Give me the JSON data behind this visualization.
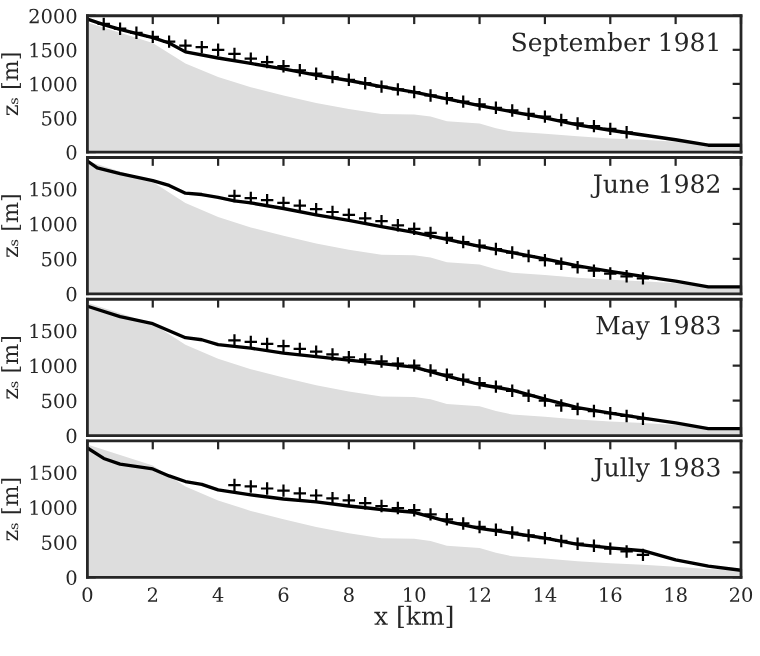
{
  "chart_data": [
    {
      "type": "line",
      "title": "September 1981",
      "ylabel": "zₛ [m]",
      "xlim": [
        0,
        20
      ],
      "ylim": [
        0,
        2000
      ],
      "xticks": [
        0,
        2,
        4,
        6,
        8,
        10,
        12,
        14,
        16,
        18,
        20
      ],
      "yticks": [
        0,
        500,
        1000,
        1500,
        2000
      ],
      "tick_labels": "y",
      "series": [
        {
          "type": "area",
          "color": "#dddddd",
          "x": [
            0,
            1,
            2,
            2.5,
            3,
            4,
            5,
            6,
            7,
            8,
            9,
            10,
            10.5,
            11,
            12,
            12.5,
            13,
            14,
            15,
            16,
            17,
            18,
            19,
            20
          ],
          "values": [
            1900,
            1750,
            1600,
            1450,
            1300,
            1100,
            950,
            830,
            720,
            630,
            560,
            550,
            520,
            450,
            420,
            350,
            300,
            270,
            230,
            200,
            180,
            150,
            120,
            100
          ]
        },
        {
          "type": "line",
          "color": "#000000",
          "x": [
            0,
            0.5,
            1,
            2,
            2.5,
            3,
            4,
            5,
            6,
            7,
            8,
            9,
            10,
            11,
            12,
            13,
            14,
            15,
            16,
            17,
            18,
            19,
            20
          ],
          "values": [
            1950,
            1870,
            1800,
            1680,
            1600,
            1470,
            1380,
            1300,
            1220,
            1130,
            1050,
            960,
            880,
            780,
            680,
            590,
            500,
            400,
            320,
            250,
            180,
            100,
            100
          ]
        },
        {
          "type": "scatter",
          "marker": "cross",
          "color": "#000000",
          "x": [
            0.5,
            1,
            1.5,
            2,
            2.5,
            3,
            3.5,
            4,
            4.5,
            5,
            5.5,
            6,
            6.5,
            7,
            7.5,
            8,
            8.5,
            9,
            9.5,
            10,
            10.5,
            11,
            11.5,
            12,
            12.5,
            13,
            13.5,
            14,
            14.5,
            15,
            15.5,
            16,
            16.5
          ],
          "values": [
            1880,
            1810,
            1750,
            1690,
            1620,
            1560,
            1540,
            1500,
            1440,
            1370,
            1320,
            1260,
            1200,
            1150,
            1100,
            1060,
            1010,
            960,
            920,
            880,
            830,
            790,
            740,
            700,
            650,
            610,
            560,
            520,
            470,
            420,
            380,
            340,
            290
          ]
        }
      ]
    },
    {
      "type": "line",
      "title": "June 1982",
      "ylabel": "zₛ [m]",
      "xlim": [
        0,
        20
      ],
      "ylim": [
        0,
        1950
      ],
      "xticks": [
        0,
        2,
        4,
        6,
        8,
        10,
        12,
        14,
        16,
        18,
        20
      ],
      "yticks": [
        0,
        500,
        1000,
        1500
      ],
      "tick_labels": "y",
      "series": [
        {
          "type": "area",
          "color": "#dddddd",
          "x": [
            0,
            1,
            2,
            2.5,
            3,
            4,
            5,
            6,
            7,
            8,
            9,
            10,
            10.5,
            11,
            12,
            12.5,
            13,
            14,
            15,
            16,
            17,
            18,
            19,
            20
          ],
          "values": [
            1900,
            1750,
            1600,
            1450,
            1300,
            1100,
            950,
            830,
            720,
            630,
            560,
            550,
            520,
            450,
            420,
            350,
            300,
            270,
            230,
            200,
            180,
            150,
            120,
            100
          ]
        },
        {
          "type": "line",
          "color": "#000000",
          "x": [
            0,
            0.3,
            1,
            2,
            2.5,
            3,
            3.5,
            4,
            4.5,
            5,
            6,
            7,
            8,
            9,
            10,
            11,
            12,
            13,
            14,
            15,
            16,
            17,
            18,
            19,
            20
          ],
          "values": [
            1900,
            1800,
            1720,
            1620,
            1550,
            1440,
            1420,
            1380,
            1330,
            1300,
            1220,
            1130,
            1050,
            960,
            880,
            780,
            680,
            590,
            500,
            400,
            320,
            250,
            180,
            100,
            100
          ]
        },
        {
          "type": "scatter",
          "marker": "cross",
          "color": "#000000",
          "x": [
            4.5,
            5,
            5.5,
            6,
            6.5,
            7,
            7.5,
            8,
            8.5,
            9,
            9.5,
            10,
            10.5,
            11,
            11.5,
            12,
            12.5,
            13,
            13.5,
            14,
            14.5,
            15,
            15.5,
            16,
            16.5,
            17
          ],
          "values": [
            1400,
            1370,
            1340,
            1300,
            1260,
            1210,
            1170,
            1130,
            1080,
            1040,
            980,
            930,
            870,
            800,
            740,
            690,
            640,
            590,
            540,
            480,
            430,
            380,
            330,
            290,
            250,
            220
          ]
        }
      ]
    },
    {
      "type": "line",
      "title": "May 1983",
      "ylabel": "zₛ [m]",
      "xlim": [
        0,
        20
      ],
      "ylim": [
        0,
        1950
      ],
      "xticks": [
        0,
        2,
        4,
        6,
        8,
        10,
        12,
        14,
        16,
        18,
        20
      ],
      "yticks": [
        0,
        500,
        1000,
        1500
      ],
      "tick_labels": "y",
      "series": [
        {
          "type": "area",
          "color": "#dddddd",
          "x": [
            0,
            1,
            2,
            2.5,
            3,
            4,
            5,
            6,
            7,
            8,
            9,
            10,
            10.5,
            11,
            12,
            12.5,
            13,
            14,
            15,
            16,
            17,
            18,
            19,
            20
          ],
          "values": [
            1900,
            1750,
            1600,
            1450,
            1300,
            1100,
            950,
            830,
            720,
            630,
            560,
            550,
            520,
            450,
            420,
            350,
            300,
            270,
            230,
            200,
            180,
            150,
            120,
            100
          ]
        },
        {
          "type": "line",
          "color": "#000000",
          "x": [
            0,
            1,
            2,
            2.5,
            3,
            3.5,
            4,
            5,
            6,
            8,
            10,
            11,
            12,
            13,
            14,
            15,
            16,
            17,
            18,
            19,
            20
          ],
          "values": [
            1850,
            1700,
            1600,
            1500,
            1400,
            1370,
            1300,
            1250,
            1180,
            1080,
            980,
            850,
            730,
            650,
            520,
            400,
            320,
            250,
            180,
            100,
            100
          ]
        },
        {
          "type": "scatter",
          "marker": "cross",
          "color": "#000000",
          "x": [
            4.5,
            5,
            5.5,
            6,
            6.5,
            7,
            7.5,
            8,
            8.5,
            9,
            9.5,
            10,
            10.5,
            11,
            11.5,
            12,
            12.5,
            13,
            13.5,
            14,
            14.5,
            15,
            15.5,
            16,
            16.5,
            17
          ],
          "values": [
            1360,
            1340,
            1310,
            1280,
            1240,
            1200,
            1160,
            1120,
            1090,
            1060,
            1030,
            1000,
            930,
            870,
            800,
            750,
            700,
            640,
            570,
            500,
            430,
            380,
            350,
            320,
            280,
            240
          ]
        }
      ]
    },
    {
      "type": "line",
      "title": "Jully 1983",
      "xlabel": "x [km]",
      "ylabel": "zₛ [m]",
      "xlim": [
        0,
        20
      ],
      "ylim": [
        0,
        1950
      ],
      "xticks": [
        0,
        2,
        4,
        6,
        8,
        10,
        12,
        14,
        16,
        18,
        20
      ],
      "yticks": [
        0,
        500,
        1000,
        1500
      ],
      "series": [
        {
          "type": "area",
          "color": "#dddddd",
          "x": [
            0,
            1,
            2,
            2.5,
            3,
            4,
            5,
            6,
            7,
            8,
            9,
            10,
            10.5,
            11,
            12,
            12.5,
            13,
            14,
            15,
            16,
            17,
            18,
            19,
            20
          ],
          "values": [
            1900,
            1750,
            1600,
            1450,
            1300,
            1100,
            950,
            830,
            720,
            630,
            560,
            550,
            520,
            450,
            420,
            350,
            300,
            270,
            230,
            200,
            180,
            150,
            120,
            100
          ]
        },
        {
          "type": "line",
          "color": "#000000",
          "x": [
            0,
            0.5,
            1,
            2,
            2.5,
            3,
            3.5,
            4,
            5,
            6,
            7,
            8,
            9,
            10,
            11,
            12,
            13,
            14,
            15,
            16,
            17,
            18,
            19,
            20
          ],
          "values": [
            1850,
            1700,
            1620,
            1550,
            1450,
            1370,
            1330,
            1250,
            1180,
            1120,
            1080,
            1020,
            970,
            930,
            800,
            700,
            630,
            560,
            470,
            420,
            380,
            250,
            160,
            100
          ]
        },
        {
          "type": "scatter",
          "marker": "cross",
          "color": "#000000",
          "x": [
            4.5,
            5,
            5.5,
            6,
            6.5,
            7,
            7.5,
            8,
            8.5,
            9,
            9.5,
            10,
            10.5,
            11,
            11.5,
            12,
            12.5,
            13,
            13.5,
            14,
            14.5,
            15,
            15.5,
            16,
            16.5,
            17
          ],
          "values": [
            1320,
            1300,
            1270,
            1240,
            1200,
            1170,
            1130,
            1100,
            1060,
            1020,
            990,
            960,
            900,
            830,
            770,
            720,
            680,
            640,
            600,
            560,
            520,
            480,
            450,
            410,
            370,
            320
          ]
        }
      ]
    }
  ]
}
